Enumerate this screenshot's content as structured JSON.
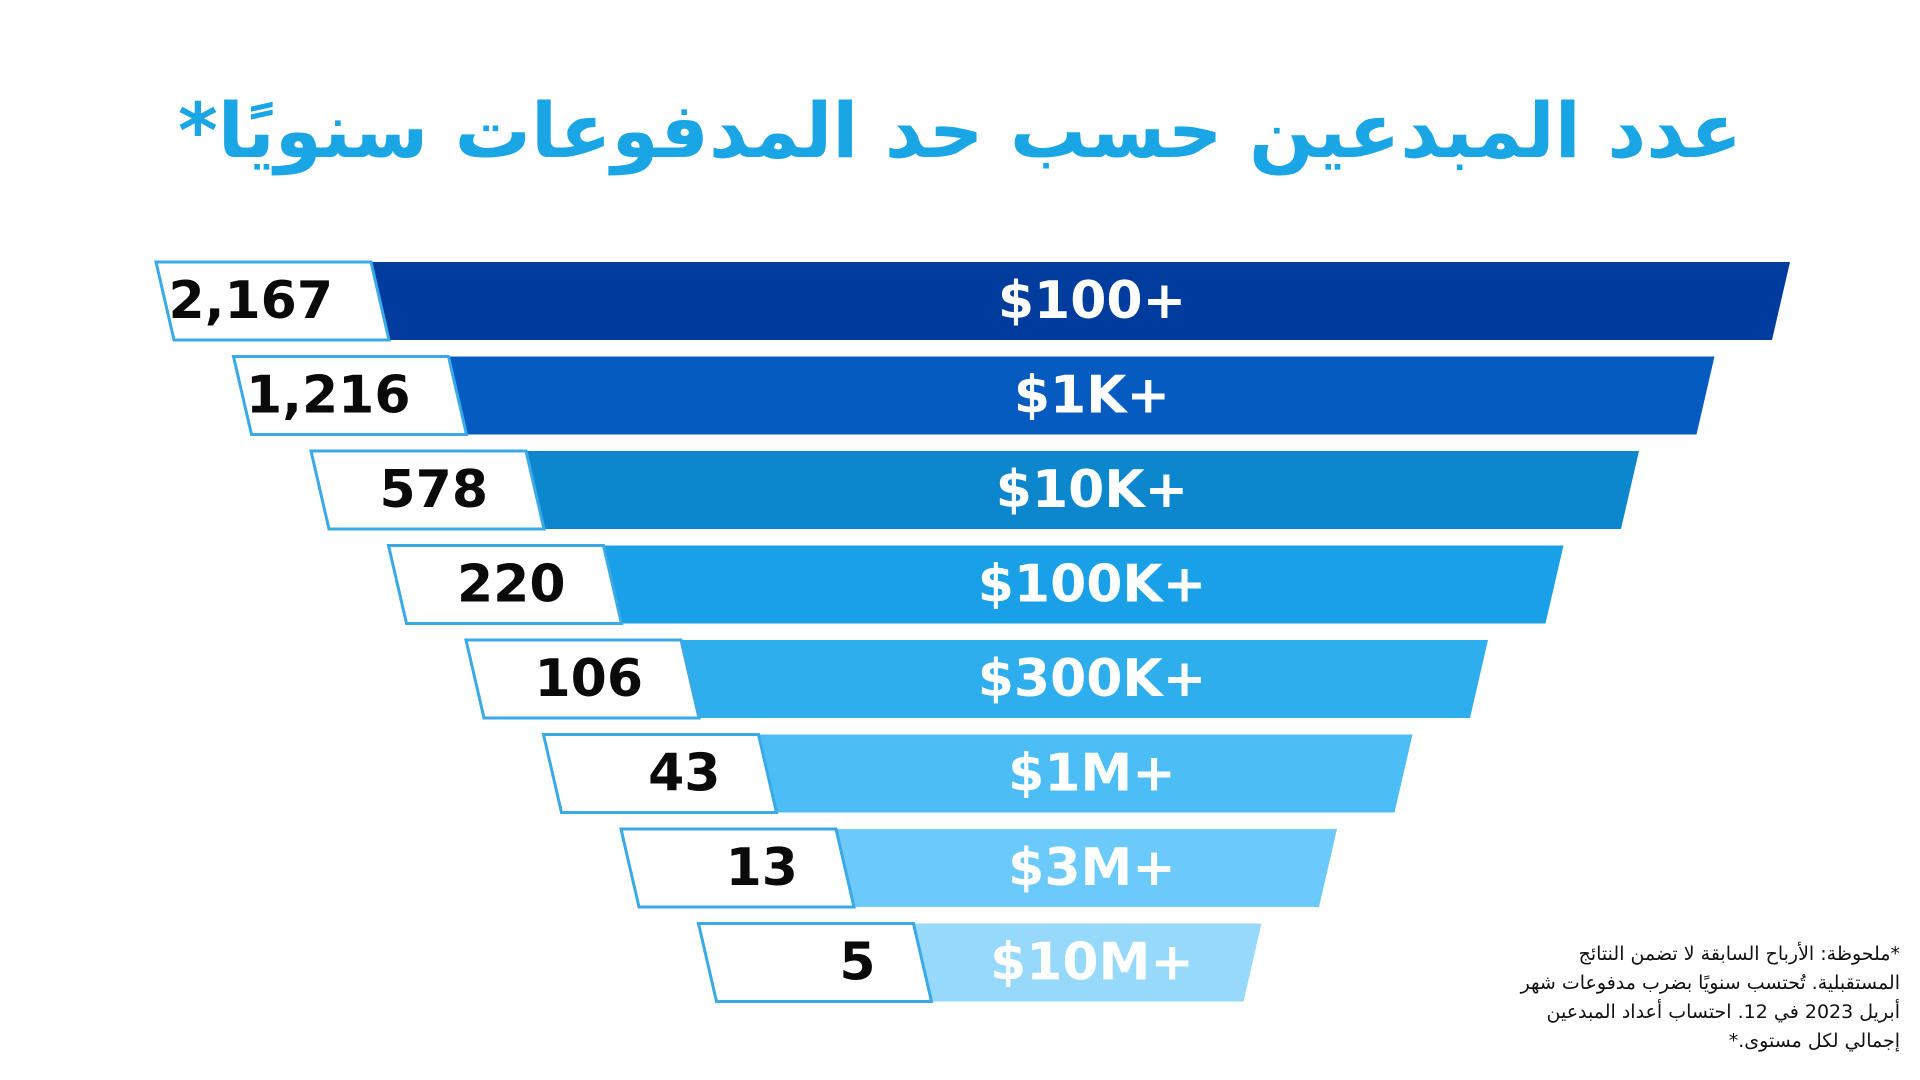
{
  "chart_data": {
    "type": "funnel",
    "title": "عدد المبدعين حسب حد المدفوعات سنويًا*",
    "categories": [
      "$100+",
      "$1K+",
      "$10K+",
      "$100K+",
      "$300K+",
      "$1M+",
      "$3M+",
      "$10M+"
    ],
    "values": [
      2167,
      1216,
      578,
      220,
      106,
      43,
      13,
      5
    ],
    "value_labels": [
      "2,167",
      "1,216",
      "578",
      "220",
      "106",
      "43",
      "13",
      "5"
    ],
    "colors": [
      "#003c9e",
      "#055bc0",
      "#0c86cc",
      "#1aa0e6",
      "#2faeee",
      "#4dbdf6",
      "#6ccafa",
      "#97d9fb"
    ],
    "label_box_border": "#3aa9e8"
  },
  "footnote": "*ملحوظة: الأرباح السابقة لا تضمن النتائج المستقبلية. تُحتسب سنويًا بضرب مدفوعات شهر أبريل 2023 في 12. احتساب أعداد المبدعين إجمالي لكل مستوى.*"
}
